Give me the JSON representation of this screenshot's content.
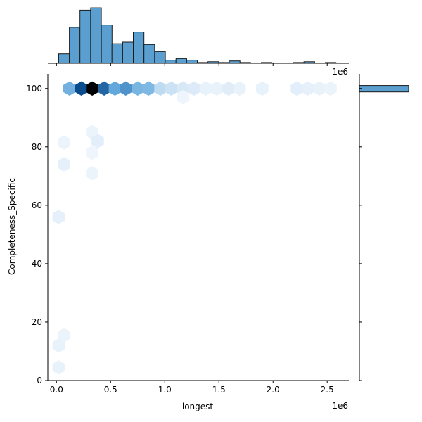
{
  "chart_data": {
    "type": "hexbin-joint",
    "xlabel": "longest",
    "ylabel": "Completeness_Specific",
    "x_offset_label": "1e6",
    "x_ticks": [
      {
        "value": 0.0,
        "label": "0.0"
      },
      {
        "value": 0.5,
        "label": "0.5"
      },
      {
        "value": 1.0,
        "label": "1.0"
      },
      {
        "value": 1.5,
        "label": "1.5"
      },
      {
        "value": 2.0,
        "label": "2.0"
      },
      {
        "value": 2.5,
        "label": "2.5"
      }
    ],
    "y_ticks": [
      {
        "value": 0,
        "label": "0"
      },
      {
        "value": 20,
        "label": "20"
      },
      {
        "value": 40,
        "label": "40"
      },
      {
        "value": 60,
        "label": "60"
      },
      {
        "value": 80,
        "label": "80"
      },
      {
        "value": 100,
        "label": "100"
      }
    ],
    "xlim": [
      -0.08,
      2.7
    ],
    "ylim": [
      0,
      105
    ],
    "grid": false,
    "colors": {
      "hist_fill": "#5a9fd0",
      "hist_edge": "#1a1a1a",
      "hex_light": "#f4f8fd",
      "hex_mid": "#62a8dc",
      "hex_dark": "#0b4c8c",
      "hex_max": "#000000"
    },
    "hexbins": [
      {
        "x": 0.12,
        "y": 100,
        "level": 0.45
      },
      {
        "x": 0.23,
        "y": 100,
        "level": 0.85
      },
      {
        "x": 0.33,
        "y": 100,
        "level": 1.0
      },
      {
        "x": 0.44,
        "y": 100,
        "level": 0.75
      },
      {
        "x": 0.54,
        "y": 100,
        "level": 0.5
      },
      {
        "x": 0.64,
        "y": 100,
        "level": 0.58
      },
      {
        "x": 0.75,
        "y": 100,
        "level": 0.42
      },
      {
        "x": 0.85,
        "y": 100,
        "level": 0.4
      },
      {
        "x": 0.96,
        "y": 100,
        "level": 0.18
      },
      {
        "x": 1.06,
        "y": 100,
        "level": 0.14
      },
      {
        "x": 1.17,
        "y": 100,
        "level": 0.1
      },
      {
        "x": 1.27,
        "y": 100,
        "level": 0.08
      },
      {
        "x": 1.38,
        "y": 100,
        "level": 0.04
      },
      {
        "x": 1.48,
        "y": 100,
        "level": 0.04
      },
      {
        "x": 1.59,
        "y": 100,
        "level": 0.07
      },
      {
        "x": 1.69,
        "y": 100,
        "level": 0.04
      },
      {
        "x": 1.9,
        "y": 100,
        "level": 0.04
      },
      {
        "x": 2.22,
        "y": 100,
        "level": 0.06
      },
      {
        "x": 2.32,
        "y": 100,
        "level": 0.05
      },
      {
        "x": 2.43,
        "y": 100,
        "level": 0.04
      },
      {
        "x": 2.53,
        "y": 100,
        "level": 0.03
      },
      {
        "x": 1.17,
        "y": 97,
        "level": 0.02
      },
      {
        "x": 0.33,
        "y": 85,
        "level": 0.03
      },
      {
        "x": 0.38,
        "y": 82,
        "level": 0.06
      },
      {
        "x": 0.07,
        "y": 81.5,
        "level": 0.03
      },
      {
        "x": 0.33,
        "y": 78,
        "level": 0.02
      },
      {
        "x": 0.07,
        "y": 74,
        "level": 0.05
      },
      {
        "x": 0.33,
        "y": 71,
        "level": 0.03
      },
      {
        "x": 0.02,
        "y": 56,
        "level": 0.05
      },
      {
        "x": 0.07,
        "y": 15.5,
        "level": 0.03
      },
      {
        "x": 0.02,
        "y": 12,
        "level": 0.04
      },
      {
        "x": 0.02,
        "y": 4.5,
        "level": 0.04
      }
    ],
    "x_hist": {
      "bin_start": 0.02,
      "bin_width": 0.0985,
      "counts": [
        12,
        46,
        68,
        71,
        49,
        25,
        27,
        40,
        24,
        15,
        4,
        6,
        4,
        1,
        2,
        1,
        3,
        1,
        0,
        1,
        0,
        0,
        1,
        2,
        0,
        1
      ],
      "max": 72
    },
    "y_hist": {
      "bins": [
        {
          "y0": 98.8,
          "y1": 101.0,
          "count": 100
        }
      ],
      "max": 100
    }
  }
}
